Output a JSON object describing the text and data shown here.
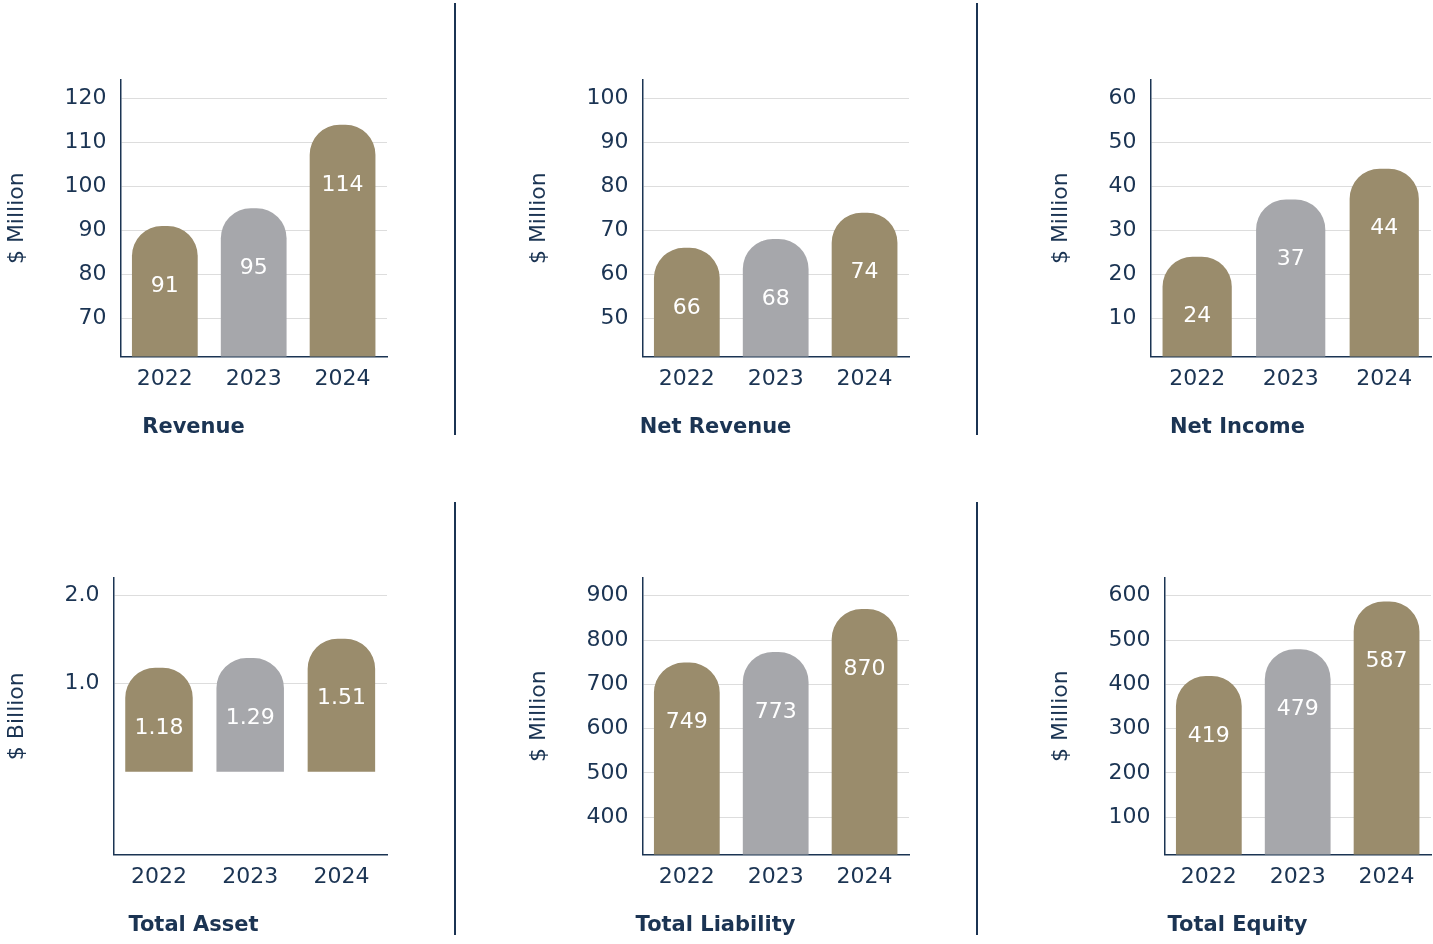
{
  "chart_data": [
    {
      "type": "bar",
      "title": "Revenue",
      "ylabel": "$ Million",
      "categories": [
        "2022",
        "2023",
        "2024"
      ],
      "values": [
        91,
        95,
        114
      ],
      "colors": [
        "#9a8c6c",
        "#a6a7ab",
        "#9a8c6c"
      ],
      "ylim": [
        61.3,
        124.2
      ],
      "yticks": [
        70,
        80,
        90,
        100,
        110,
        120
      ],
      "grid": "y",
      "data_labels": true,
      "legend": false
    },
    {
      "type": "bar",
      "title": "Net Revenue",
      "ylabel": "$ Million",
      "categories": [
        "2022",
        "2023",
        "2024"
      ],
      "values": [
        66,
        68,
        74
      ],
      "colors": [
        "#9a8c6c",
        "#a6a7ab",
        "#9a8c6c"
      ],
      "ylim": [
        41.3,
        104.2
      ],
      "yticks": [
        50,
        60,
        70,
        80,
        90,
        100
      ],
      "grid": "y",
      "data_labels": true,
      "legend": false
    },
    {
      "type": "bar",
      "title": "Net Income",
      "ylabel": "$ Million",
      "categories": [
        "2022",
        "2023",
        "2024"
      ],
      "values": [
        24,
        37,
        44
      ],
      "colors": [
        "#9a8c6c",
        "#a6a7ab",
        "#9a8c6c"
      ],
      "ylim": [
        1.3,
        64.2
      ],
      "yticks": [
        10,
        20,
        30,
        40,
        50,
        60
      ],
      "grid": "y",
      "data_labels": true,
      "legend": false
    },
    {
      "type": "bar",
      "title": "Total Asset",
      "ylabel": "$ Billion",
      "categories": [
        "2022",
        "2023",
        "2024"
      ],
      "values": [
        1.18,
        1.29,
        1.51
      ],
      "colors": [
        "#9a8c6c",
        "#a6a7ab",
        "#9a8c6c"
      ],
      "ylim": [
        -0.94,
        2.2
      ],
      "yticks": [
        {
          "value": 1,
          "label": "1.0"
        },
        {
          "value": 2,
          "label": "2.0"
        }
      ],
      "grid": "y",
      "data_labels": true,
      "legend": false
    },
    {
      "type": "bar",
      "title": "Total Liability",
      "ylabel": "$ Million",
      "categories": [
        "2022",
        "2023",
        "2024"
      ],
      "values": [
        749,
        773,
        870
      ],
      "colors": [
        "#9a8c6c",
        "#a6a7ab",
        "#9a8c6c"
      ],
      "ylim": [
        316,
        940
      ],
      "yticks": [
        400,
        500,
        600,
        700,
        800,
        900
      ],
      "grid": "y",
      "data_labels": true,
      "legend": false
    },
    {
      "type": "bar",
      "title": "Total Equity",
      "ylabel": "$ Million",
      "categories": [
        "2022",
        "2023",
        "2024"
      ],
      "values": [
        419,
        479,
        587
      ],
      "colors": [
        "#9a8c6c",
        "#a6a7ab",
        "#9a8c6c"
      ],
      "ylim": [
        16,
        640
      ],
      "yticks": [
        100,
        200,
        300,
        400,
        500,
        600
      ],
      "grid": "y",
      "data_labels": true,
      "legend": false
    }
  ]
}
